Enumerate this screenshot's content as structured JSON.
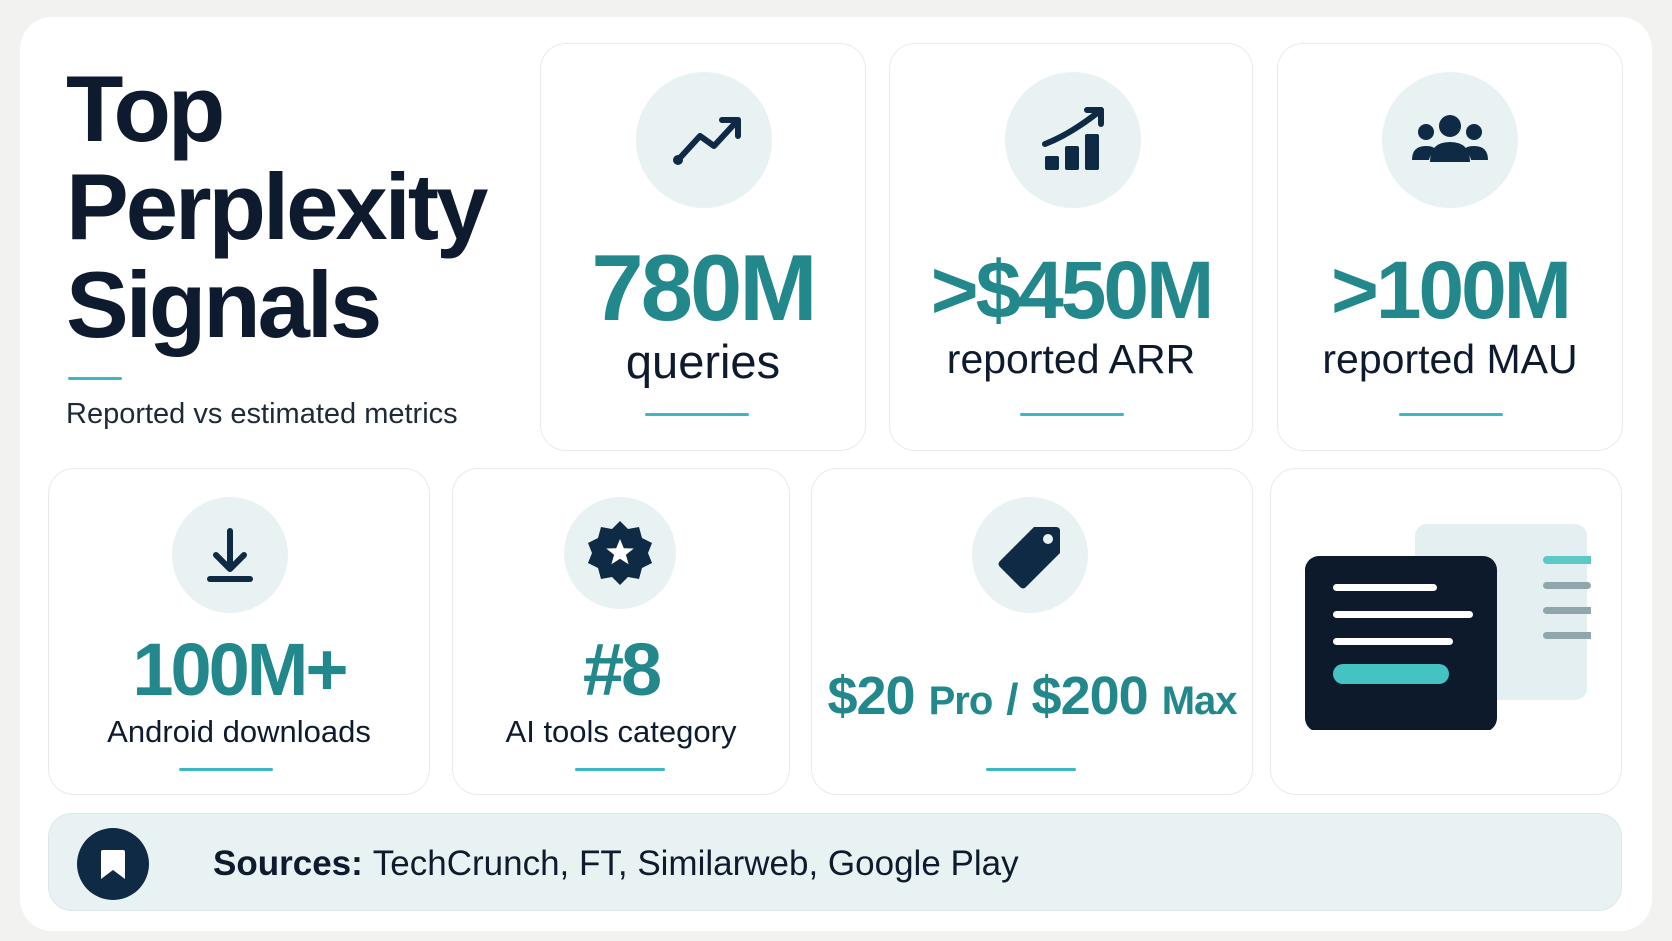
{
  "header": {
    "title_lines": [
      "Top",
      "Perplexity",
      "Signals"
    ],
    "subtitle": "Reported vs estimated metrics"
  },
  "cards": [
    {
      "icon": "trend-line-icon",
      "value": "780M",
      "label": "queries"
    },
    {
      "icon": "bar-chart-up-icon",
      "value": ">$450M",
      "label": "reported ARR"
    },
    {
      "icon": "users-group-icon",
      "value": ">100M",
      "label": "reported MAU"
    },
    {
      "icon": "download-icon",
      "value": "100M+",
      "label": "Android downloads"
    },
    {
      "icon": "star-badge-icon",
      "value": "#8",
      "label": "AI tools category"
    },
    {
      "icon": "price-tag-icon",
      "price_1": "$20",
      "plan_1": "Pro",
      "separator": "/",
      "price_2": "$200",
      "plan_2": "Max"
    },
    {
      "icon": "documents-illustration-icon"
    }
  ],
  "sources": {
    "label": "Sources:",
    "text": "TechCrunch, FT, Similarweb, Google Play",
    "icon": "bookmark-icon"
  },
  "colors": {
    "accent": "#23888c",
    "underline": "#3bb8c4",
    "navy": "#0e1b2e",
    "icon_bg": "#e9f2f2"
  }
}
